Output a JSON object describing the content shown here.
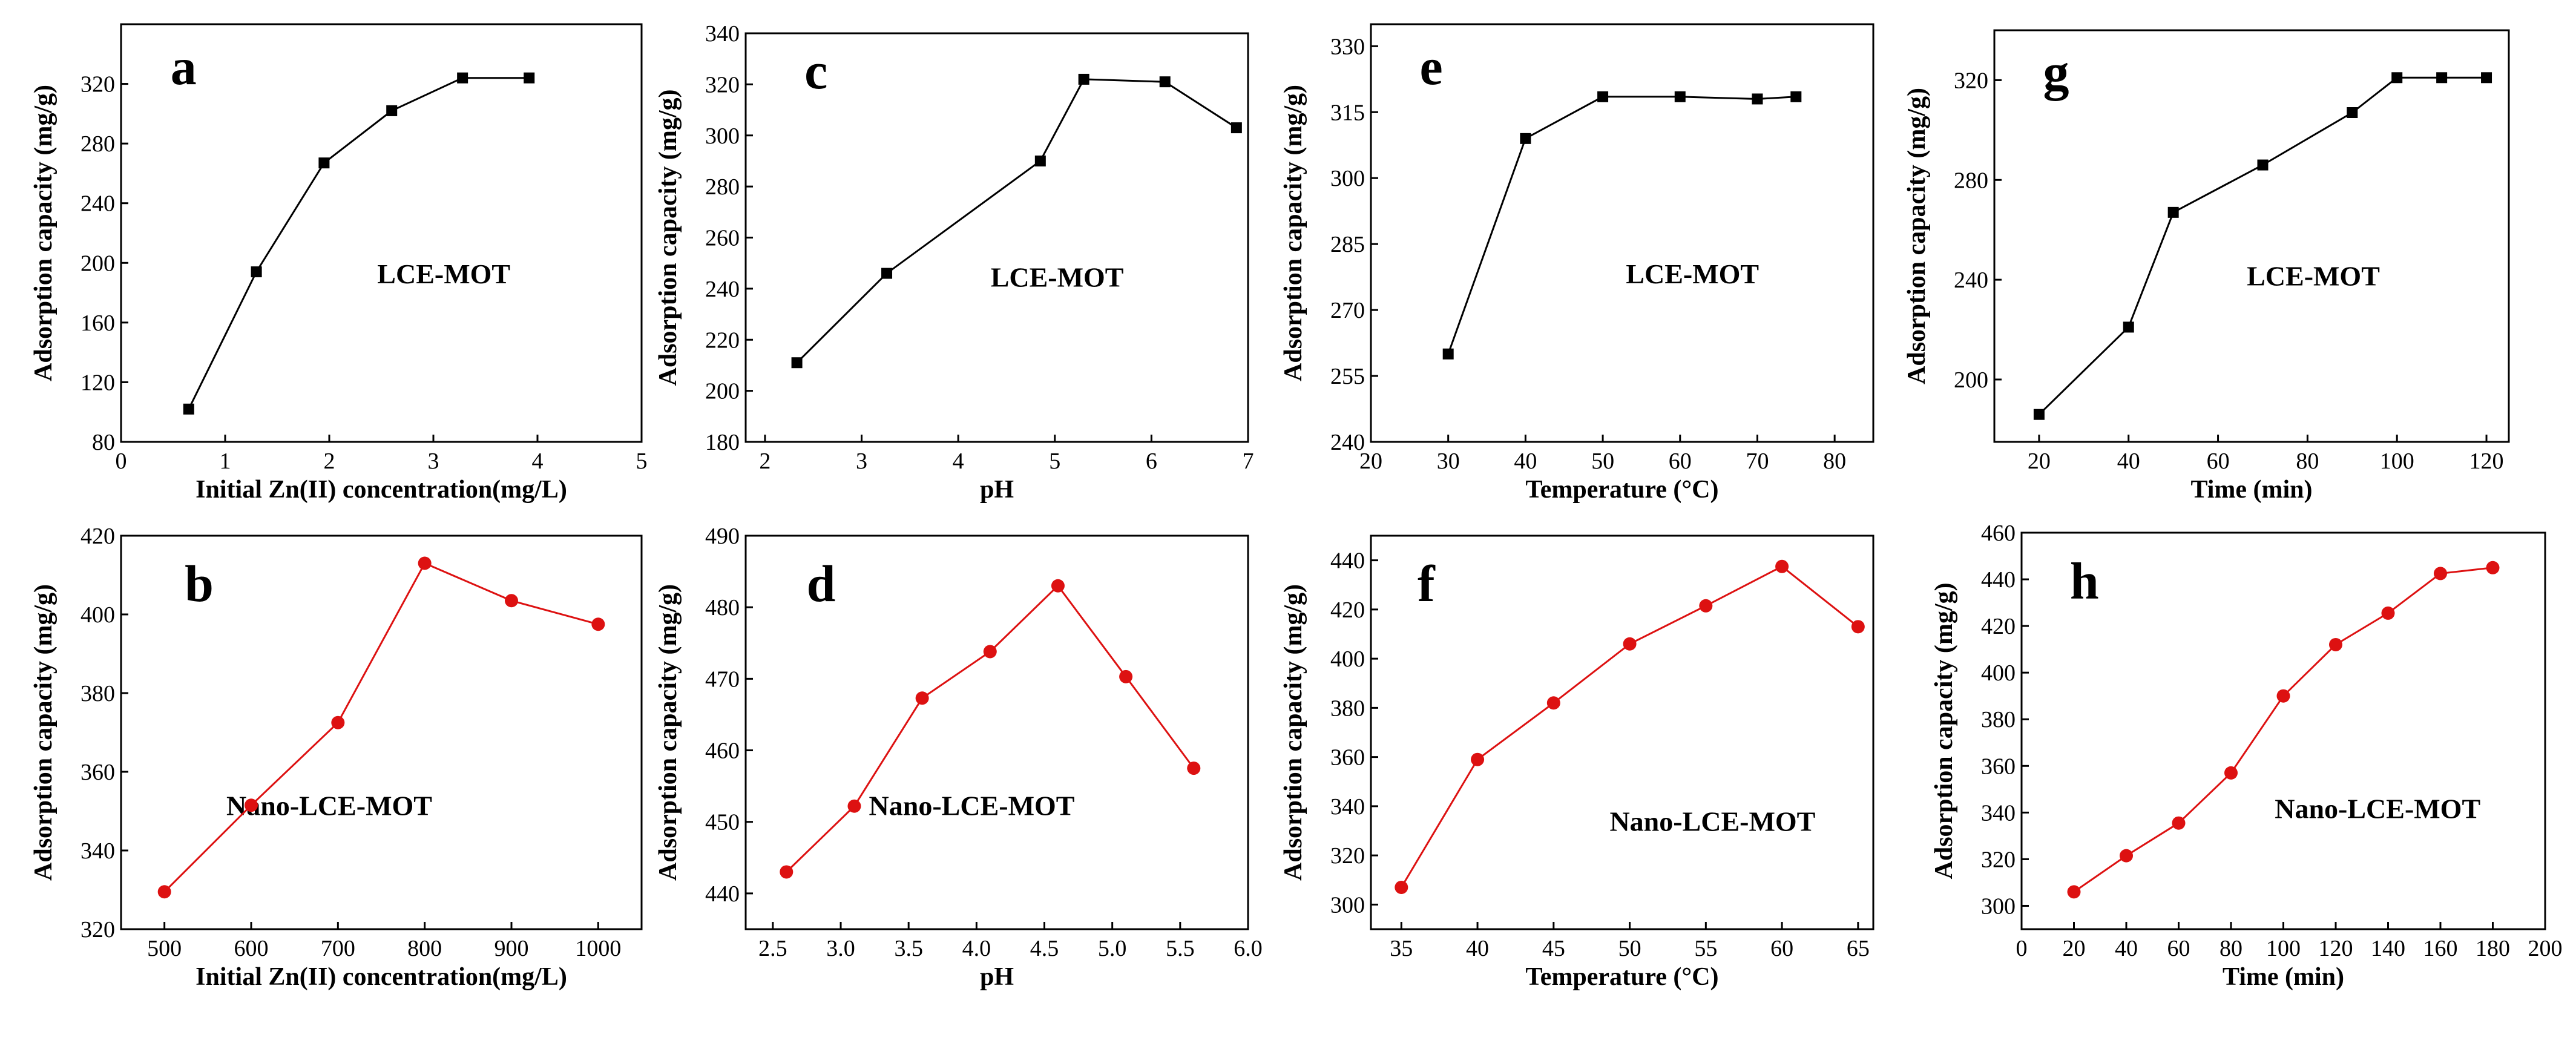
{
  "chart_data": [
    {
      "id": "a",
      "type": "line",
      "letter": "a",
      "title": "",
      "label": "LCE-MOT",
      "xlabel": "Initial Zn(II) concentration(mg/L)",
      "ylabel": "Adsorption capacity (mg/g)",
      "xlim": [
        0,
        5
      ],
      "ylim": [
        80,
        360
      ],
      "xticks": [
        0,
        1,
        2,
        3,
        4,
        5
      ],
      "yticks": [
        80,
        120,
        160,
        200,
        240,
        280,
        320
      ],
      "marker": "square",
      "color": "#000000",
      "series": [
        {
          "name": "LCE-MOT",
          "x": [
            0.65,
            1.3,
            1.95,
            2.6,
            3.28,
            3.92
          ],
          "y": [
            102,
            194,
            267,
            302,
            324,
            324
          ]
        }
      ]
    },
    {
      "id": "b",
      "type": "line",
      "letter": "b",
      "title": "",
      "label": "Nano-LCE-MOT",
      "xlabel": "Initial Zn(II) concentration(mg/L)",
      "ylabel": "Adsorption capacity (mg/g)",
      "xlim": [
        450,
        1050
      ],
      "ylim": [
        320,
        420
      ],
      "xticks": [
        500,
        600,
        700,
        800,
        900,
        1000
      ],
      "yticks": [
        320,
        340,
        360,
        380,
        400,
        420
      ],
      "marker": "circle",
      "color": "#dd1111",
      "series": [
        {
          "name": "Nano-LCE-MOT",
          "x": [
            500,
            600,
            700,
            800,
            900,
            1000
          ],
          "y": [
            329.5,
            351.5,
            372.5,
            413,
            403.5,
            397.5
          ]
        }
      ]
    },
    {
      "id": "c",
      "type": "line",
      "letter": "c",
      "title": "",
      "label": "LCE-MOT",
      "xlabel": "pH",
      "ylabel": "Adsorption capacity (mg/g)",
      "xlim": [
        1.8,
        7
      ],
      "ylim": [
        180,
        340
      ],
      "xticks": [
        2,
        3,
        4,
        5,
        6,
        7
      ],
      "yticks": [
        180,
        200,
        220,
        240,
        260,
        280,
        300,
        320,
        340
      ],
      "marker": "square",
      "color": "#000000",
      "series": [
        {
          "name": "LCE-MOT",
          "x": [
            2.33,
            3.26,
            4.85,
            5.3,
            6.14,
            6.88
          ],
          "y": [
            211,
            246,
            290,
            322,
            321,
            303
          ]
        }
      ]
    },
    {
      "id": "d",
      "type": "line",
      "letter": "d",
      "title": "",
      "label": "Nano-LCE-MOT",
      "xlabel": "pH",
      "ylabel": "Adsorption capacity (mg/g)",
      "xlim": [
        2.3,
        6.0
      ],
      "ylim": [
        435,
        490
      ],
      "xticks": [
        2.5,
        3.0,
        3.5,
        4.0,
        4.5,
        5.0,
        5.5,
        6.0
      ],
      "yticks": [
        440,
        450,
        460,
        470,
        480,
        490
      ],
      "marker": "circle",
      "color": "#dd1111",
      "series": [
        {
          "name": "Nano-LCE-MOT",
          "x": [
            2.6,
            3.1,
            3.6,
            4.1,
            4.6,
            5.1,
            5.6
          ],
          "y": [
            443,
            452.2,
            467.3,
            473.8,
            483,
            470.3,
            457.5
          ]
        }
      ]
    },
    {
      "id": "e",
      "type": "line",
      "letter": "e",
      "title": "",
      "label": "LCE-MOT",
      "xlabel": "Temperature (°C)",
      "ylabel": "Adsorption capacity (mg/g)",
      "xlim": [
        20,
        85
      ],
      "ylim": [
        240,
        335
      ],
      "xticks": [
        20,
        30,
        40,
        50,
        60,
        70,
        80
      ],
      "yticks": [
        240,
        255,
        270,
        285,
        300,
        315,
        330
      ],
      "marker": "square",
      "color": "#000000",
      "series": [
        {
          "name": "LCE-MOT",
          "x": [
            30,
            40,
            50,
            60,
            70,
            75
          ],
          "y": [
            260,
            309,
            318.5,
            318.5,
            318,
            318.5
          ]
        }
      ]
    },
    {
      "id": "f",
      "type": "line",
      "letter": "f",
      "title": "",
      "label": "Nano-LCE-MOT",
      "xlabel": "Temperature (°C)",
      "ylabel": "Adsorption capacity (mg/g)",
      "xlim": [
        33,
        66
      ],
      "ylim": [
        290,
        450
      ],
      "xticks": [
        35,
        40,
        45,
        50,
        55,
        60,
        65
      ],
      "yticks": [
        300,
        320,
        340,
        360,
        380,
        400,
        420,
        440
      ],
      "marker": "circle",
      "color": "#dd1111",
      "series": [
        {
          "name": "Nano-LCE-MOT",
          "x": [
            35,
            40,
            45,
            50,
            55,
            60,
            65
          ],
          "y": [
            307,
            359,
            382,
            406,
            421.5,
            437.5,
            413
          ]
        }
      ]
    },
    {
      "id": "g",
      "type": "line",
      "letter": "g",
      "title": "",
      "label": "LCE-MOT",
      "xlabel": "Time (min)",
      "ylabel": "Adsorption capacity (mg/g)",
      "xlim": [
        10,
        125
      ],
      "ylim": [
        175,
        340
      ],
      "xticks": [
        20,
        40,
        60,
        80,
        100,
        120
      ],
      "yticks": [
        200,
        240,
        280,
        320
      ],
      "marker": "square",
      "color": "#000000",
      "series": [
        {
          "name": "LCE-MOT",
          "x": [
            20,
            40,
            50,
            70,
            90,
            100,
            110,
            120
          ],
          "y": [
            186,
            221,
            267,
            286,
            307,
            321,
            321,
            321
          ]
        }
      ]
    },
    {
      "id": "h",
      "type": "line",
      "letter": "h",
      "title": "",
      "label": "Nano-LCE-MOT",
      "xlabel": "Time (min)",
      "ylabel": "Adsorption capacity (mg/g)",
      "xlim": [
        0,
        200
      ],
      "ylim": [
        290,
        460
      ],
      "xticks": [
        0,
        20,
        40,
        60,
        80,
        100,
        120,
        140,
        160,
        180,
        200
      ],
      "yticks": [
        300,
        320,
        340,
        360,
        380,
        400,
        420,
        440,
        460
      ],
      "marker": "circle",
      "color": "#dd1111",
      "series": [
        {
          "name": "Nano-LCE-MOT",
          "x": [
            20,
            40,
            60,
            80,
            100,
            120,
            140,
            160,
            180
          ],
          "y": [
            306,
            321.5,
            335.5,
            357,
            390,
            412,
            425.5,
            442.5,
            445
          ]
        }
      ]
    }
  ]
}
